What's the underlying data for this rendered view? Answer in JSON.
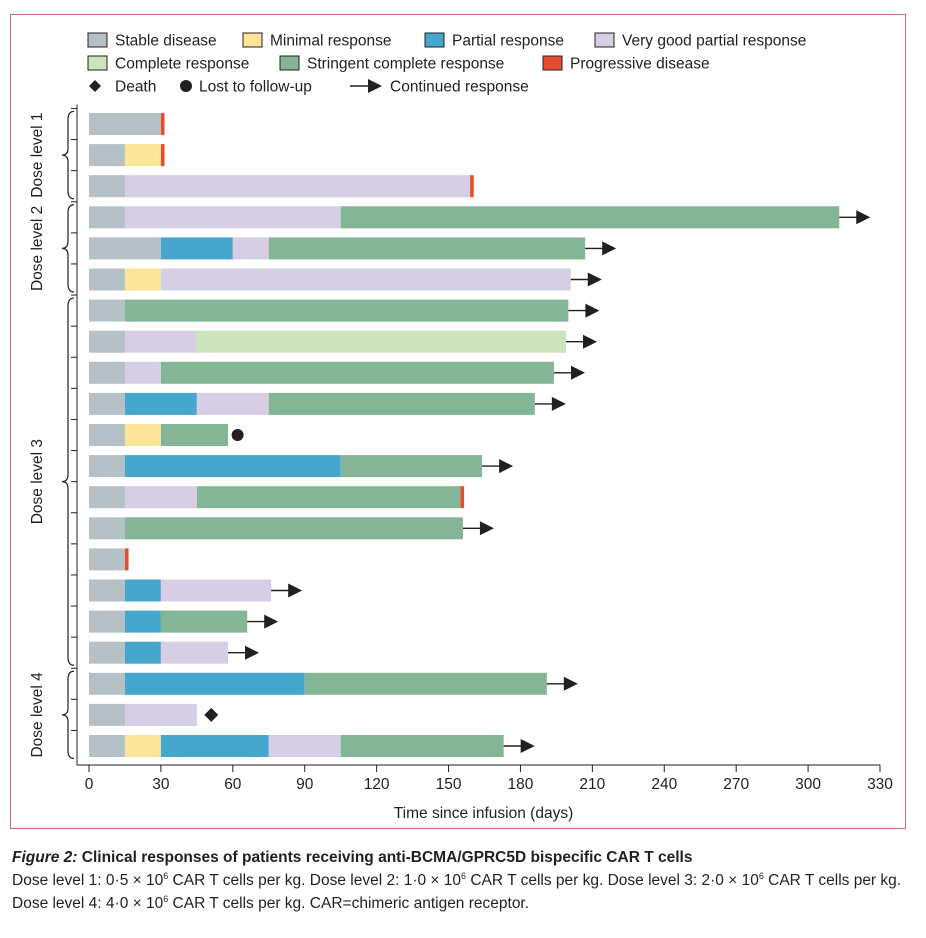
{
  "legend": [
    {
      "key": "stable",
      "label": "Stable disease",
      "kind": "box"
    },
    {
      "key": "minimal",
      "label": "Minimal response",
      "kind": "box"
    },
    {
      "key": "partial",
      "label": "Partial response",
      "kind": "box"
    },
    {
      "key": "vgpr",
      "label": "Very good partial response",
      "kind": "box"
    },
    {
      "key": "complete",
      "label": "Complete response",
      "kind": "box"
    },
    {
      "key": "stringent",
      "label": "Stringent complete response",
      "kind": "box"
    },
    {
      "key": "progressive",
      "label": "Progressive disease",
      "kind": "box"
    },
    {
      "key": "death",
      "label": "Death",
      "kind": "diamond"
    },
    {
      "key": "lost",
      "label": "Lost to follow-up",
      "kind": "circle"
    },
    {
      "key": "continued",
      "label": "Continued response",
      "kind": "arrow"
    }
  ],
  "colors": {
    "stable": "#b5c1c6",
    "minimal": "#fbe599",
    "partial": "#46a6cd",
    "vgpr": "#d5cee5",
    "complete": "#cde3bc",
    "stringent": "#84b596",
    "progressive": "#e84b2d",
    "marker": "#231f20",
    "frame": "#c86a73"
  },
  "chart_data": {
    "type": "bar",
    "orientation": "horizontal-stacked-swimmer",
    "xlabel": "Time since infusion (days)",
    "xlim": [
      0,
      330
    ],
    "xticks": [
      0,
      30,
      60,
      90,
      120,
      150,
      180,
      210,
      240,
      270,
      300,
      330
    ],
    "groups": [
      {
        "label": "Dose level 1",
        "rows": [
          0,
          2
        ]
      },
      {
        "label": "Dose level 2",
        "rows": [
          3,
          5
        ]
      },
      {
        "label": "Dose level 3",
        "rows": [
          6,
          17
        ]
      },
      {
        "label": "Dose level 4",
        "rows": [
          18,
          20
        ]
      }
    ],
    "patients": [
      {
        "segments": [
          [
            "stable",
            0,
            30
          ],
          [
            "progressive",
            30,
            31.5
          ]
        ]
      },
      {
        "segments": [
          [
            "stable",
            0,
            15
          ],
          [
            "minimal",
            15,
            30
          ],
          [
            "progressive",
            30,
            31.5
          ]
        ]
      },
      {
        "segments": [
          [
            "stable",
            0,
            15
          ],
          [
            "vgpr",
            15,
            159
          ],
          [
            "progressive",
            159,
            160.5
          ]
        ]
      },
      {
        "segments": [
          [
            "stable",
            0,
            15
          ],
          [
            "vgpr",
            15,
            105
          ],
          [
            "stringent",
            105,
            313
          ]
        ],
        "end": "continued"
      },
      {
        "segments": [
          [
            "stable",
            0,
            30
          ],
          [
            "partial",
            30,
            60
          ],
          [
            "vgpr",
            60,
            75
          ],
          [
            "stringent",
            75,
            207
          ]
        ],
        "end": "continued"
      },
      {
        "segments": [
          [
            "stable",
            0,
            15
          ],
          [
            "minimal",
            15,
            30
          ],
          [
            "vgpr",
            30,
            201
          ]
        ],
        "end": "continued"
      },
      {
        "segments": [
          [
            "stable",
            0,
            15
          ],
          [
            "stringent",
            15,
            200
          ]
        ],
        "end": "continued"
      },
      {
        "segments": [
          [
            "stable",
            0,
            15
          ],
          [
            "vgpr",
            15,
            45
          ],
          [
            "complete",
            45,
            199
          ]
        ],
        "end": "continued"
      },
      {
        "segments": [
          [
            "stable",
            0,
            15
          ],
          [
            "vgpr",
            15,
            30
          ],
          [
            "stringent",
            30,
            194
          ]
        ],
        "end": "continued"
      },
      {
        "segments": [
          [
            "stable",
            0,
            15
          ],
          [
            "partial",
            15,
            45
          ],
          [
            "vgpr",
            45,
            75
          ],
          [
            "stringent",
            75,
            186
          ]
        ],
        "end": "continued"
      },
      {
        "segments": [
          [
            "stable",
            0,
            15
          ],
          [
            "minimal",
            15,
            30
          ],
          [
            "stringent",
            30,
            58
          ]
        ],
        "end": "lost",
        "marker_at": 62
      },
      {
        "segments": [
          [
            "stable",
            0,
            15
          ],
          [
            "partial",
            15,
            105
          ],
          [
            "stringent",
            105,
            164
          ]
        ],
        "end": "continued"
      },
      {
        "segments": [
          [
            "stable",
            0,
            15
          ],
          [
            "vgpr",
            15,
            45
          ],
          [
            "stringent",
            45,
            155
          ],
          [
            "progressive",
            155,
            156.5
          ]
        ]
      },
      {
        "segments": [
          [
            "stable",
            0,
            15
          ],
          [
            "stringent",
            15,
            156
          ]
        ],
        "end": "continued"
      },
      {
        "segments": [
          [
            "stable",
            0,
            15
          ],
          [
            "progressive",
            15,
            16.5
          ]
        ]
      },
      {
        "segments": [
          [
            "stable",
            0,
            15
          ],
          [
            "partial",
            15,
            30
          ],
          [
            "vgpr",
            30,
            76
          ]
        ],
        "end": "continued"
      },
      {
        "segments": [
          [
            "stable",
            0,
            15
          ],
          [
            "partial",
            15,
            30
          ],
          [
            "stringent",
            30,
            66
          ]
        ],
        "end": "continued"
      },
      {
        "segments": [
          [
            "stable",
            0,
            15
          ],
          [
            "partial",
            15,
            30
          ],
          [
            "vgpr",
            30,
            58
          ]
        ],
        "end": "continued"
      },
      {
        "segments": [
          [
            "stable",
            0,
            15
          ],
          [
            "partial",
            15,
            90
          ],
          [
            "stringent",
            90,
            191
          ]
        ],
        "end": "continued"
      },
      {
        "segments": [
          [
            "stable",
            0,
            15
          ],
          [
            "vgpr",
            15,
            45
          ]
        ],
        "end": "death",
        "marker_at": 51
      },
      {
        "segments": [
          [
            "stable",
            0,
            15
          ],
          [
            "minimal",
            15,
            30
          ],
          [
            "partial",
            30,
            75
          ],
          [
            "vgpr",
            75,
            105
          ],
          [
            "stringent",
            105,
            173
          ]
        ],
        "end": "continued"
      }
    ]
  },
  "caption": {
    "figure_label": "Figure 2:",
    "title": "Clinical responses of patients receiving anti-BCMA/GPRC5D bispecific CAR T cells",
    "dl1_text": "Dose level 1: 0·5 × 10",
    "dl1_exp": "6",
    "dl1_rest": " CAR T cells per kg. ",
    "dl2_text": "Dose level 2: 1·0 × 10",
    "dl2_exp": "6",
    "dl2_rest": " CAR T cells per kg. ",
    "dl3_text": "Dose level 3: 2·0 × 10",
    "dl3_exp": "6",
    "dl3_rest": " CAR T cells per kg. ",
    "dl4_text": "Dose level 4: 4·0 × 10",
    "dl4_exp": "6",
    "dl4_rest": " CAR T cells per kg. CAR=chimeric antigen receptor."
  }
}
